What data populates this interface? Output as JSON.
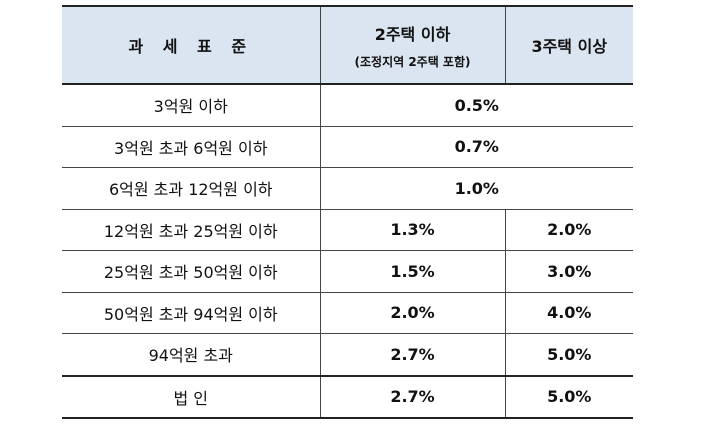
{
  "header": {
    "col1": "과 세 표 준",
    "col2_main": "2주택 이하",
    "col2_sub": "(조정지역 2주택 포함)",
    "col3": "3주택 이상"
  },
  "rows": [
    {
      "label": "3억원 이하",
      "merged": true,
      "rate": "0.5%"
    },
    {
      "label": "3억원 초과 6억원 이하",
      "merged": true,
      "rate": "0.7%"
    },
    {
      "label": "6억원 초과 12억원 이하",
      "merged": true,
      "rate": "1.0%"
    },
    {
      "label": "12억원 초과 25억원 이하",
      "merged": false,
      "rate2": "1.3%",
      "rate3": "2.0%"
    },
    {
      "label": "25억원 초과 50억원 이하",
      "merged": false,
      "rate2": "1.5%",
      "rate3": "3.0%"
    },
    {
      "label": "50억원 초과 94억원 이하",
      "merged": false,
      "rate2": "2.0%",
      "rate3": "4.0%"
    },
    {
      "label": "94억원 초과",
      "merged": false,
      "rate2": "2.7%",
      "rate3": "5.0%"
    },
    {
      "label": "법 인",
      "merged": false,
      "rate2": "2.7%",
      "rate3": "5.0%"
    }
  ]
}
